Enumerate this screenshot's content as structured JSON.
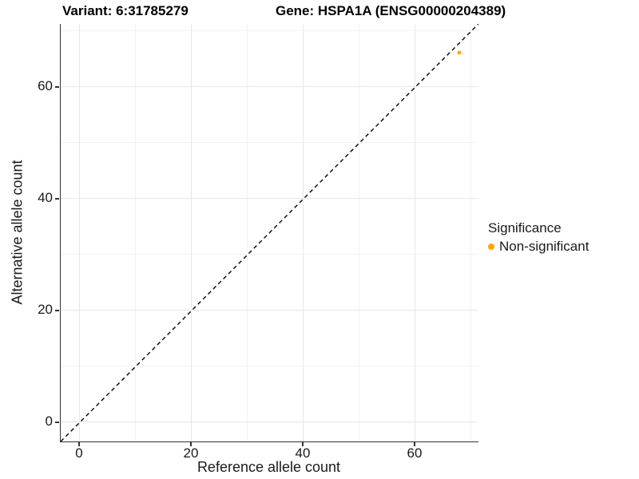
{
  "titles": {
    "variant": "Variant: 6:31785279",
    "gene": "Gene: HSPA1A (ENSG00000204389)"
  },
  "axes": {
    "x": {
      "label": "Reference allele count",
      "major_ticks": [
        0,
        20,
        40,
        60
      ],
      "minor_ticks": [
        10,
        30,
        50,
        70
      ],
      "tick_labels": [
        "0",
        "20",
        "40",
        "60"
      ]
    },
    "y": {
      "label": "Alternative allele count",
      "major_ticks": [
        0,
        20,
        40,
        60
      ],
      "minor_ticks": [
        10,
        30,
        50,
        70
      ],
      "tick_labels": [
        "0",
        "20",
        "40",
        "60"
      ]
    }
  },
  "legend": {
    "title": "Significance",
    "items": [
      {
        "label": "Non-significant",
        "color": "#FFA500"
      }
    ]
  },
  "colors": {
    "point": "#FFA500",
    "axis_line": "#333333",
    "grid_major": "#e6e6e6",
    "grid_minor": "#f2f2f2",
    "identity_line": "#000000",
    "background": "#ffffff"
  },
  "chart_data": {
    "type": "scatter",
    "title": "Variant: 6:31785279 — Gene: HSPA1A (ENSG00000204389)",
    "xlabel": "Reference allele count",
    "ylabel": "Alternative allele count",
    "xlim": [
      -3.4,
      71.4
    ],
    "ylim": [
      -3.4,
      71.4
    ],
    "x_ticks": [
      0,
      20,
      40,
      60
    ],
    "y_ticks": [
      0,
      20,
      40,
      60
    ],
    "grid": "major and minor gridlines, white background",
    "legend_position": "right",
    "series": [
      {
        "name": "Non-significant",
        "color": "#FFA500",
        "points": [
          {
            "x": 68,
            "y": 66
          }
        ]
      }
    ],
    "annotations": [
      {
        "type": "reference-line",
        "equation": "y = x",
        "style": "dashed",
        "color": "#000000"
      }
    ]
  }
}
